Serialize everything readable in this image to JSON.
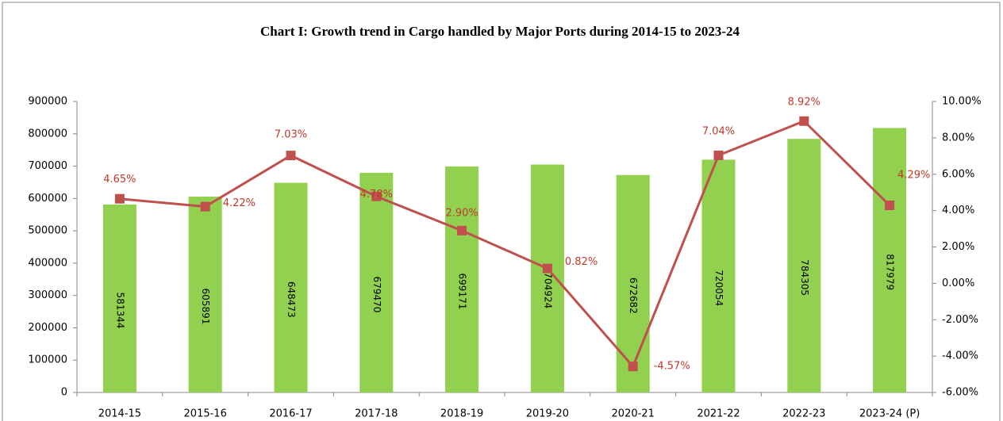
{
  "chart_data": {
    "type": "bar",
    "title": "Chart I: Growth trend in Cargo handled by Major Ports during 2014-15 to 2023-24",
    "categories": [
      "2014-15",
      "2015-16",
      "2016-17",
      "2017-18",
      "2018-19",
      "2019-20",
      "2020-21",
      "2021-22",
      "2022-23",
      "2023-24 (P)"
    ],
    "series": [
      {
        "type": "bar",
        "color": "#92d050",
        "values": [
          581344,
          605891,
          648473,
          679470,
          699171,
          704924,
          672682,
          720054,
          784305,
          817979
        ]
      },
      {
        "type": "line",
        "axis": "y2",
        "color": "#c0504d",
        "values": [
          4.65,
          4.22,
          7.03,
          4.78,
          2.9,
          0.82,
          -4.57,
          7.04,
          8.92,
          4.29
        ],
        "value_labels": [
          "4.65%",
          "4.22%",
          "7.03%",
          "4.78%",
          "2.90%",
          "0.82%",
          "-4.57%",
          "7.04%",
          "8.92%",
          "4.29%"
        ]
      }
    ],
    "ylim": [
      0,
      900000
    ],
    "yticks": [
      0,
      100000,
      200000,
      300000,
      400000,
      500000,
      600000,
      700000,
      800000,
      900000
    ],
    "y2lim": [
      -6,
      10
    ],
    "y2ticks": [
      {
        "value": -6,
        "label": "-6.00%"
      },
      {
        "value": -4,
        "label": "-4.00%"
      },
      {
        "value": -2,
        "label": "-2.00%"
      },
      {
        "value": 0,
        "label": "0.00%"
      },
      {
        "value": 2,
        "label": "2.00%"
      },
      {
        "value": 4,
        "label": "4.00%"
      },
      {
        "value": 6,
        "label": "6.00%"
      },
      {
        "value": 8,
        "label": "8.00%"
      },
      {
        "value": 10,
        "label": "10.00%"
      }
    ],
    "grid": false
  }
}
